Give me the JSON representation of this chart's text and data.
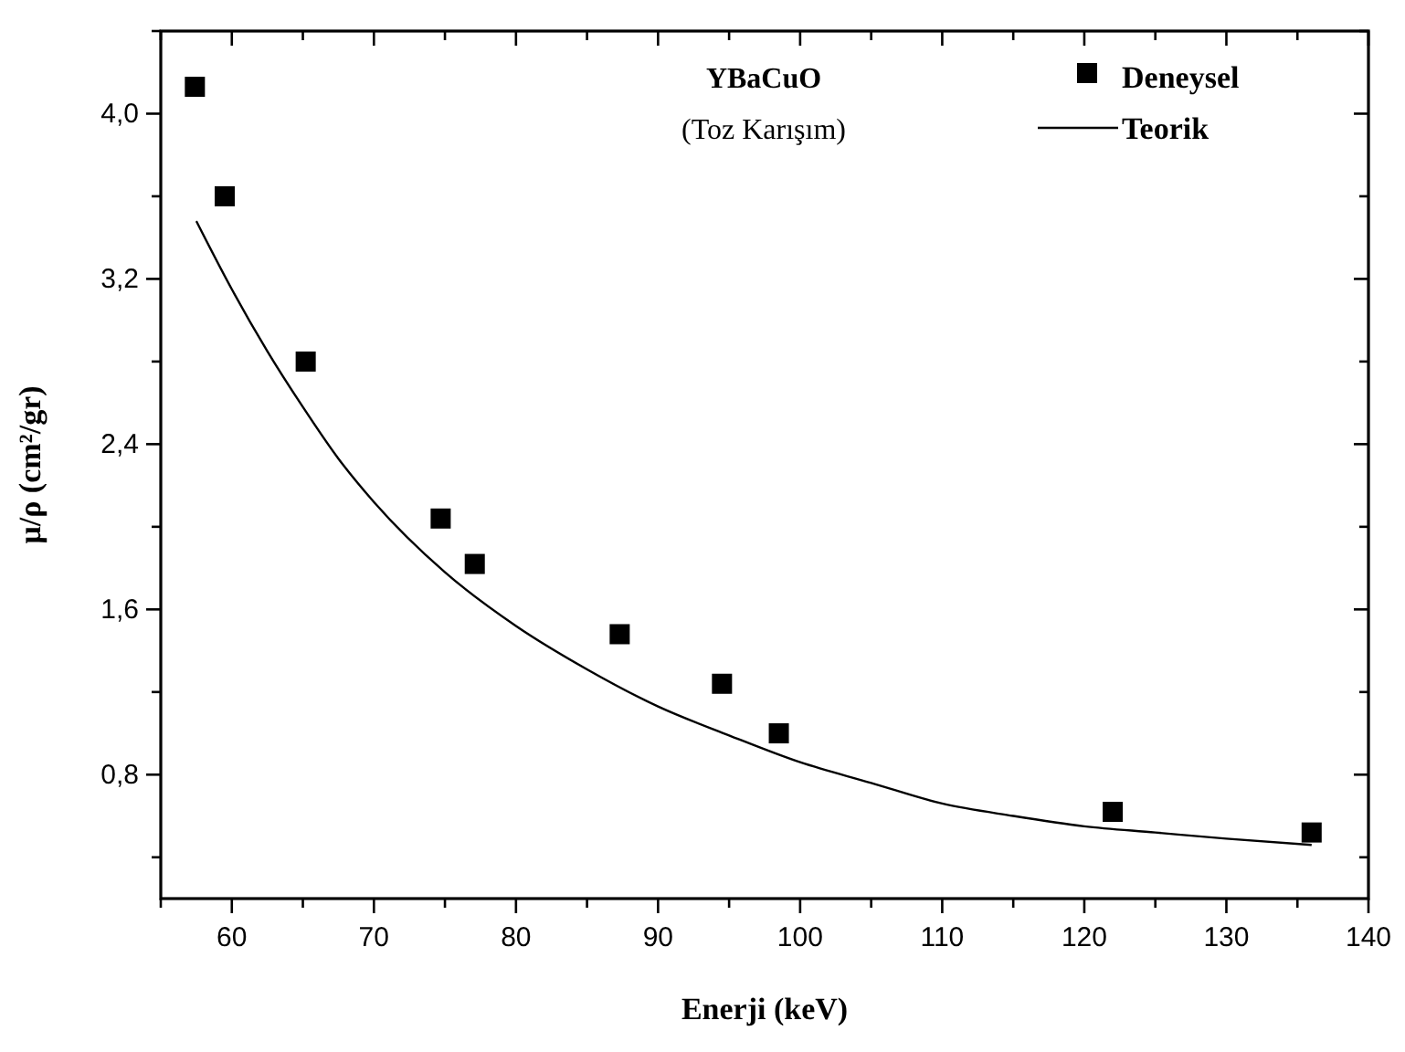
{
  "chart_data": {
    "type": "scatter",
    "title": "YBaCuO",
    "subtitle": "(Toz Karışım)",
    "xlabel": "Enerji (keV)",
    "ylabel": "μ/ρ (cm²/gr)",
    "xlim": [
      55,
      140
    ],
    "ylim": [
      0.2,
      4.4
    ],
    "xticks": [
      {
        "value": 55,
        "label": null
      },
      60,
      {
        "value": 65,
        "label": null
      },
      70,
      {
        "value": 75,
        "label": null
      },
      80,
      {
        "value": 85,
        "label": null
      },
      90,
      {
        "value": 95,
        "label": null
      },
      100,
      {
        "value": 105,
        "label": null
      },
      110,
      {
        "value": 115,
        "label": null
      },
      120,
      {
        "value": 125,
        "label": null
      },
      130,
      {
        "value": 135,
        "label": null
      },
      140
    ],
    "yticks": [
      {
        "value": 0.4,
        "label": null
      },
      {
        "value": 0.8,
        "label": "0,8"
      },
      {
        "value": 1.2,
        "label": null
      },
      {
        "value": 1.6,
        "label": "1,6"
      },
      {
        "value": 2.0,
        "label": null
      },
      {
        "value": 2.4,
        "label": "2,4"
      },
      {
        "value": 2.8,
        "label": null
      },
      {
        "value": 3.2,
        "label": "3,2"
      },
      {
        "value": 3.6,
        "label": null
      },
      {
        "value": 4.0,
        "label": "4,0"
      },
      {
        "value": 4.4,
        "label": null
      }
    ],
    "grid": false,
    "legend": "top right",
    "series": [
      {
        "name": "Deneysel",
        "marker": "square",
        "color": "#000000",
        "x": [
          57.4,
          59.5,
          65.2,
          74.7,
          77.1,
          87.3,
          94.5,
          98.5,
          122.0,
          136.0
        ],
        "values": [
          4.13,
          3.6,
          2.8,
          2.04,
          1.82,
          1.48,
          1.24,
          1.0,
          0.62,
          0.52
        ]
      },
      {
        "name": "Teorik",
        "type": "line",
        "marker": "none",
        "line_style": "solid",
        "color": "#000000",
        "x": [
          57.5,
          60,
          62.5,
          65,
          67.5,
          70,
          75,
          80,
          85,
          90,
          95,
          100,
          105,
          110,
          115,
          120,
          125,
          130,
          136
        ],
        "values": [
          3.48,
          3.15,
          2.85,
          2.58,
          2.33,
          2.12,
          1.78,
          1.52,
          1.31,
          1.13,
          0.99,
          0.86,
          0.76,
          0.66,
          0.6,
          0.55,
          0.52,
          0.49,
          0.46
        ]
      }
    ]
  }
}
